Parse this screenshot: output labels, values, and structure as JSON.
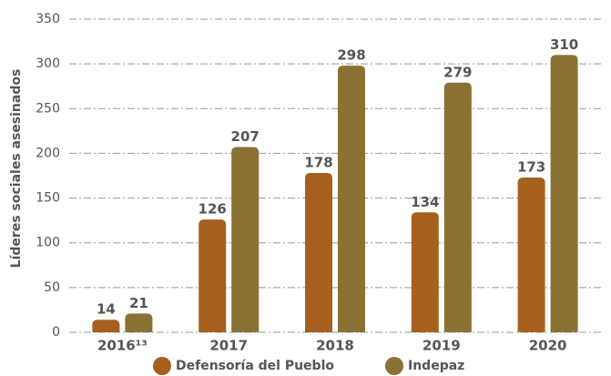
{
  "chart_data": {
    "type": "bar",
    "y_label": "Líderes sociales asesinados",
    "categories": [
      "2016¹³",
      "2017",
      "2018",
      "2019",
      "2020"
    ],
    "series": [
      {
        "name": "Defensoría del Pueblo",
        "color": "#a5601f",
        "values": [
          14,
          126,
          178,
          134,
          173
        ]
      },
      {
        "name": "Indepaz",
        "color": "#8a7234",
        "values": [
          21,
          207,
          298,
          279,
          310
        ]
      }
    ],
    "ylim": [
      0,
      350
    ],
    "yticks": [
      0,
      50,
      100,
      150,
      200,
      250,
      300,
      350
    ],
    "grid": true,
    "legend": "bottom"
  }
}
